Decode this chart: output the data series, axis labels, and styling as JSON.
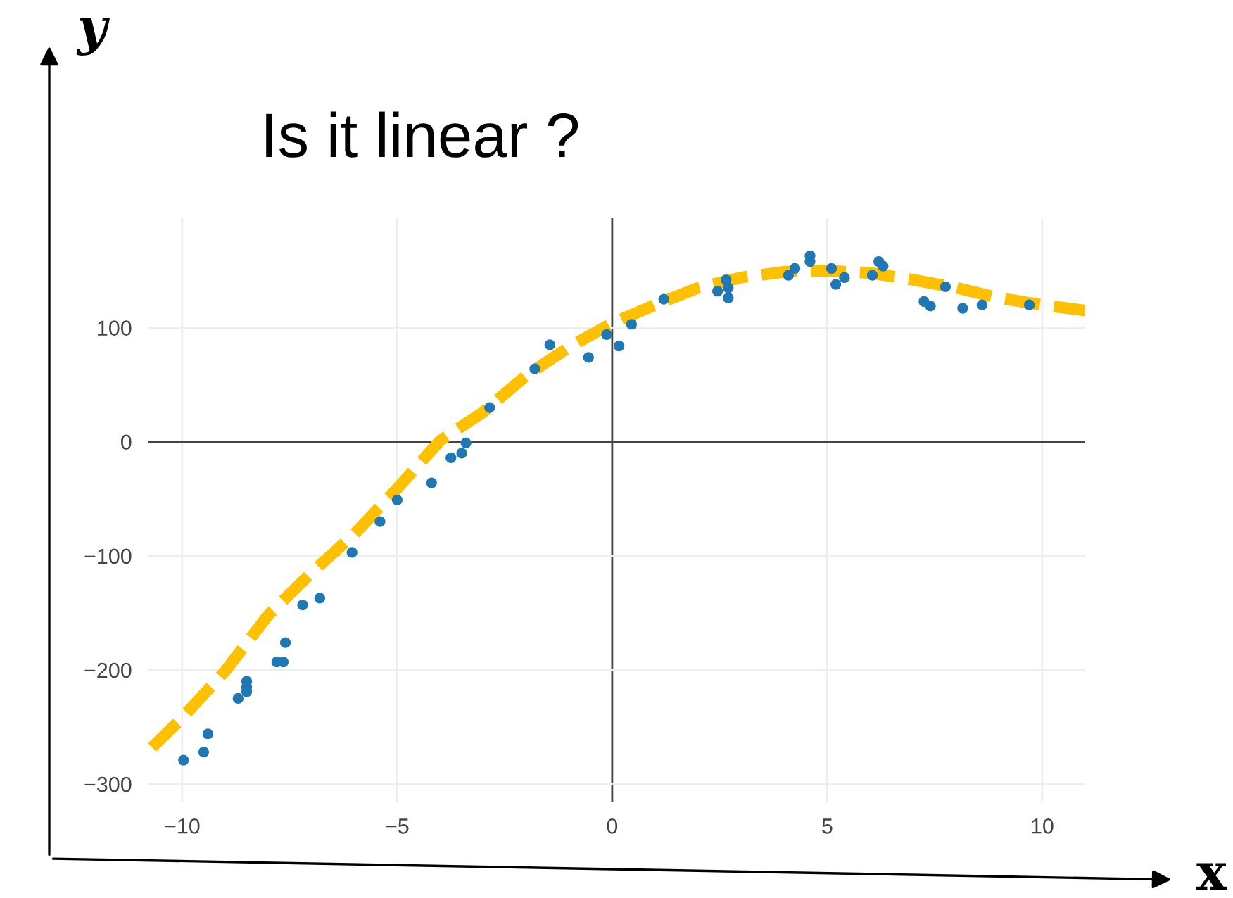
{
  "chart_data": {
    "type": "scatter",
    "title": "Is it linear ?",
    "xlabel": "x",
    "ylabel": "y",
    "xlim": [
      -10.8,
      11
    ],
    "ylim": [
      -316,
      196
    ],
    "xticks": [
      -10,
      -5,
      0,
      5,
      10
    ],
    "yticks": [
      -300,
      -200,
      -100,
      0,
      100
    ],
    "grid": true,
    "marker": "circle",
    "series": [
      {
        "color": "#1f77b4",
        "x": [
          -9.97,
          -9.5,
          -9.4,
          -8.7,
          -8.5,
          -8.5,
          -8.5,
          -7.8,
          -7.65,
          -7.6,
          -7.2,
          -6.8,
          -6.05,
          -5.4,
          -5.0,
          -4.2,
          -3.75,
          -3.5,
          -3.4,
          -2.85,
          -1.8,
          -1.45,
          -0.55,
          -0.13,
          0.16,
          0.45,
          1.2,
          2.45,
          2.65,
          2.7,
          2.7,
          4.1,
          4.25,
          4.6,
          4.6,
          5.1,
          5.2,
          5.4,
          6.05,
          6.2,
          6.3,
          7.25,
          7.4,
          7.75,
          8.15,
          8.6,
          9.7
        ],
        "values": [
          -279,
          -272,
          -256,
          -225,
          -219,
          -215,
          -210,
          -193,
          -193,
          -176,
          -143,
          -137,
          -97,
          -70,
          -51,
          -36,
          -14,
          -10,
          -1,
          30,
          64,
          85,
          74,
          94,
          84,
          103,
          125,
          132,
          142,
          135,
          126,
          146,
          152,
          163,
          158,
          152,
          138,
          144,
          146,
          158,
          154,
          123,
          119,
          136,
          117,
          120,
          120
        ]
      },
      {
        "type": "line",
        "color": "#ffc000",
        "line_style": "dashed",
        "marker": "none",
        "x": [
          -10.7,
          -10,
          -9,
          -8,
          -7,
          -6,
          -5,
          -4,
          -3,
          -2,
          -1,
          0,
          1,
          2,
          3,
          4,
          5,
          6,
          7,
          8,
          9,
          10,
          11
        ],
        "values": [
          -268,
          -242,
          -201,
          -152,
          -115,
          -81,
          -41,
          1,
          26,
          58,
          83,
          104,
          120,
          135,
          144,
          149,
          150,
          148,
          142,
          135,
          126,
          120,
          115
        ]
      }
    ]
  }
}
